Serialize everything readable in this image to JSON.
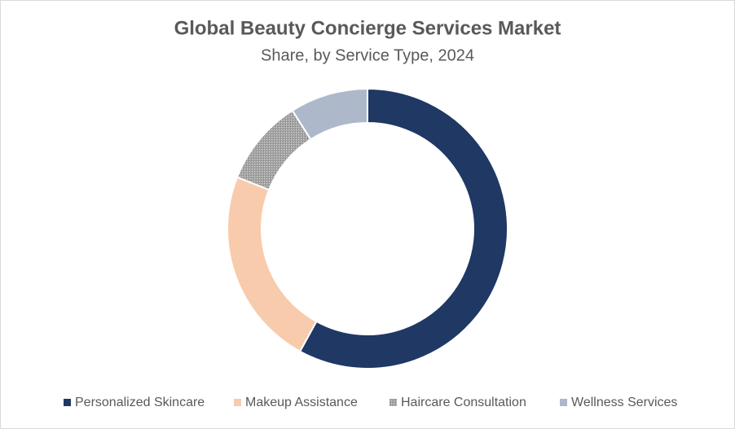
{
  "chart_data": {
    "type": "donut",
    "title": "Global Beauty Concierge Services Market",
    "subtitle": "Share, by Service Type, 2024",
    "categories": [
      "Personalized Skincare",
      "Makeup Assistance",
      "Haircare Consultation",
      "Wellness Services"
    ],
    "values": [
      58,
      23,
      10,
      9
    ],
    "colors": [
      "#1f3864",
      "#f8cbad",
      "#a5a5a5",
      "#adb9ca"
    ],
    "legend": "bottom"
  }
}
